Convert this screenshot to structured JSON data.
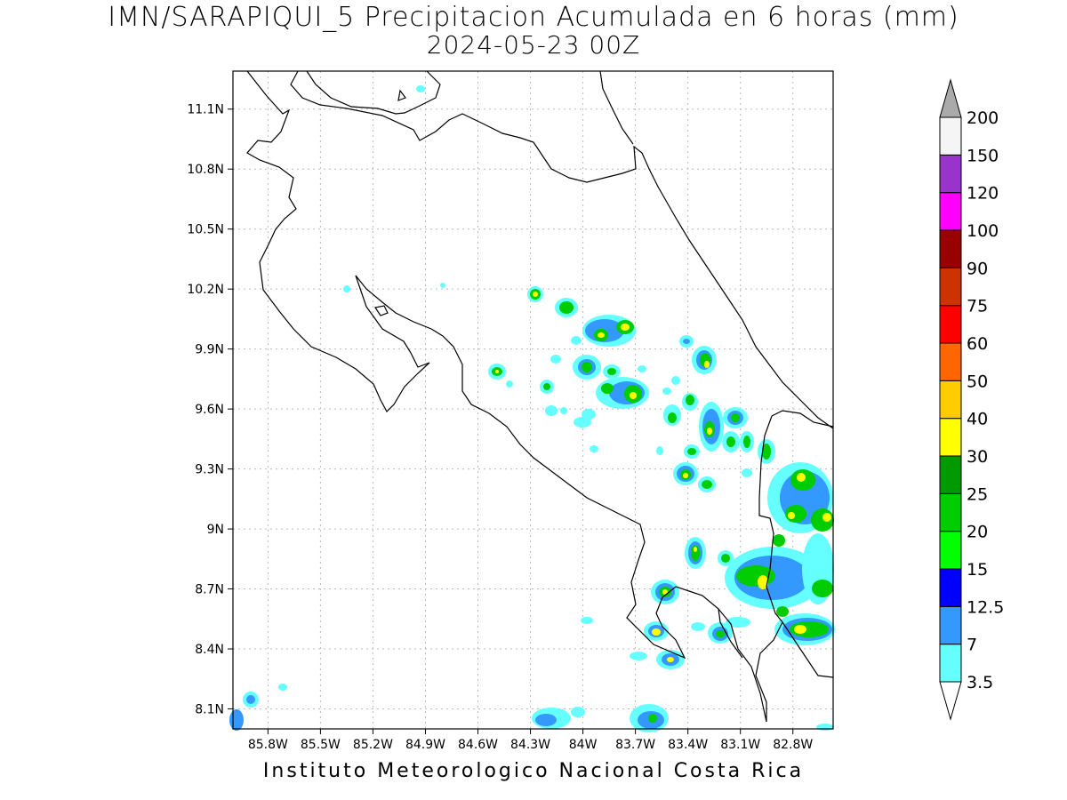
{
  "title_line1": "IMN/SARAPIQUI_5 Precipitacion Acumulada en 6 horas (mm)",
  "title_line2": "2024-05-23 00Z",
  "footer": "Instituto Meteorologico Nacional Costa Rica",
  "map": {
    "lat_ticks": [
      "11.1N",
      "10.8N",
      "10.5N",
      "10.2N",
      "9.9N",
      "9.6N",
      "9.3N",
      "9N",
      "8.7N",
      "8.4N",
      "8.1N"
    ],
    "lon_ticks": [
      "85.8W",
      "85.5W",
      "85.2W",
      "84.9W",
      "84.6W",
      "84.3W",
      "84W",
      "83.7W",
      "83.4W",
      "83.1W",
      "82.8W"
    ],
    "lat_values": [
      11.1,
      10.8,
      10.5,
      10.2,
      9.9,
      9.6,
      9.3,
      9.0,
      8.7,
      8.4,
      8.1
    ],
    "lon_values": [
      -85.8,
      -85.5,
      -85.2,
      -84.9,
      -84.6,
      -84.3,
      -84.0,
      -83.7,
      -83.4,
      -83.1,
      -82.8
    ],
    "grid": true,
    "border_color": "#000000"
  },
  "colorbar": {
    "labels": [
      "3.5",
      "7",
      "12.5",
      "15",
      "20",
      "25",
      "30",
      "40",
      "50",
      "60",
      "75",
      "90",
      "100",
      "120",
      "150",
      "200"
    ],
    "colors": [
      "#ffffff",
      "#66ffff",
      "#3399ff",
      "#0000ff",
      "#00ff00",
      "#00cc00",
      "#009900",
      "#ffff00",
      "#ffcc00",
      "#ff6600",
      "#ff0000",
      "#cc3300",
      "#990000",
      "#ff00ff",
      "#9933cc",
      "#f5f5f5",
      "#aaaaaa"
    ]
  }
}
